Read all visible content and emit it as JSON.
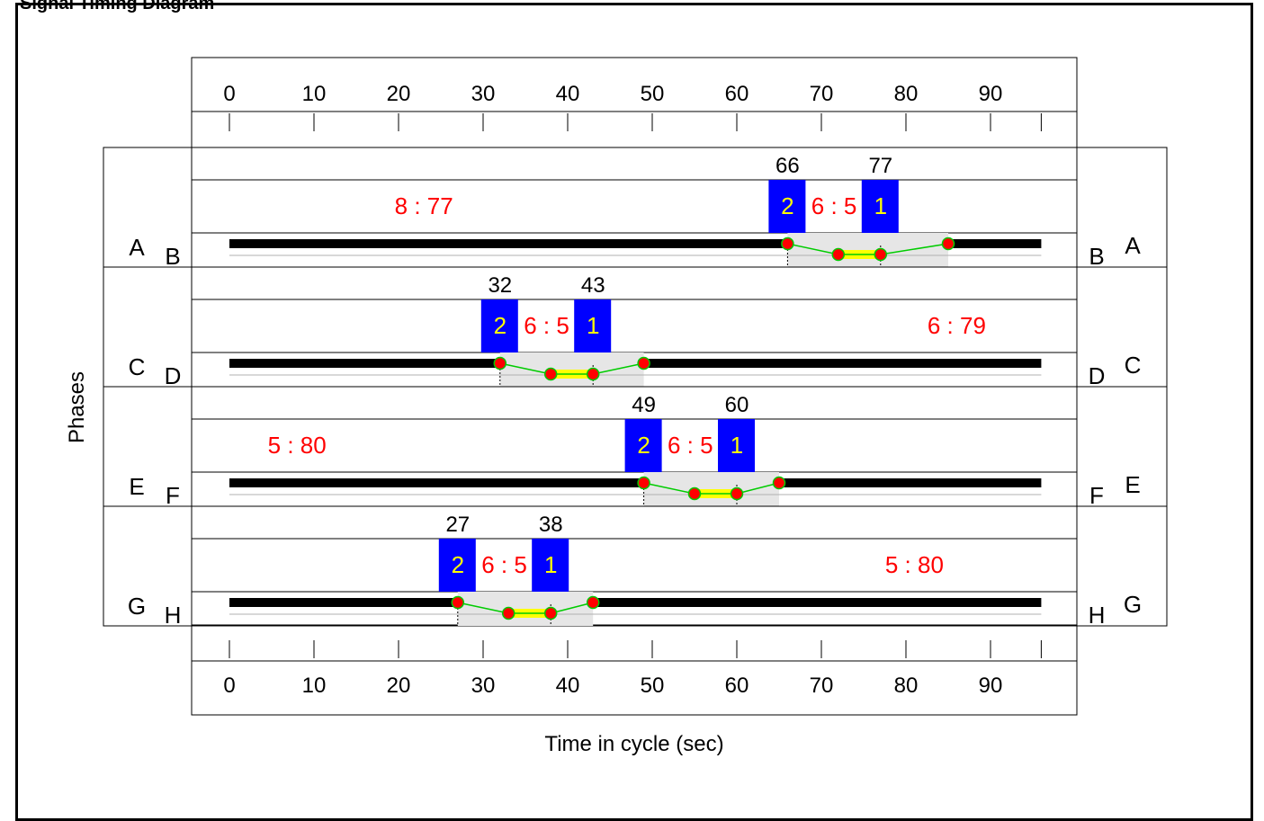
{
  "page_title": "Signal Timing Diagram",
  "axis": {
    "ticks": [
      0,
      10,
      20,
      30,
      40,
      50,
      60,
      70,
      80,
      90
    ],
    "xlabel": "Time in cycle (sec)",
    "ylabel": "Phases",
    "cycle_length": 96
  },
  "colors": {
    "green_bar": "#000000",
    "yellow": "#ffff00",
    "marker": "#ff0000",
    "marker_edge": "#00cc00",
    "link": "#00cc00",
    "shade": "#e6e6e6",
    "box": "#0000ff",
    "box_text": "#ffff00",
    "red_text": "#ff0000"
  },
  "rings": [
    {
      "left_outer": "A",
      "left_inner": "B",
      "right_inner": "B",
      "right_outer": "A",
      "times": [
        66,
        77
      ],
      "box_labels": [
        "2",
        "1"
      ],
      "inner_label": "6 : 5",
      "split_label": "8 : 77",
      "split_at": 23,
      "markers": [
        66,
        72,
        77,
        85
      ]
    },
    {
      "left_outer": "C",
      "left_inner": "D",
      "right_inner": "D",
      "right_outer": "C",
      "times": [
        32,
        43
      ],
      "box_labels": [
        "2",
        "1"
      ],
      "inner_label": "6 : 5",
      "split_label": "6 : 79",
      "split_at": 86,
      "markers": [
        32,
        38,
        43,
        49
      ]
    },
    {
      "left_outer": "E",
      "left_inner": "F",
      "right_inner": "F",
      "right_outer": "E",
      "times": [
        49,
        60
      ],
      "box_labels": [
        "2",
        "1"
      ],
      "inner_label": "6 : 5",
      "split_label": "5 : 80",
      "split_at": 8,
      "markers": [
        49,
        55,
        60,
        65
      ]
    },
    {
      "left_outer": "G",
      "left_inner": "H",
      "right_inner": "H",
      "right_outer": "G",
      "times": [
        27,
        38
      ],
      "box_labels": [
        "2",
        "1"
      ],
      "inner_label": "6 : 5",
      "split_label": "5 : 80",
      "split_at": 81,
      "markers": [
        27,
        33,
        38,
        43
      ]
    }
  ]
}
